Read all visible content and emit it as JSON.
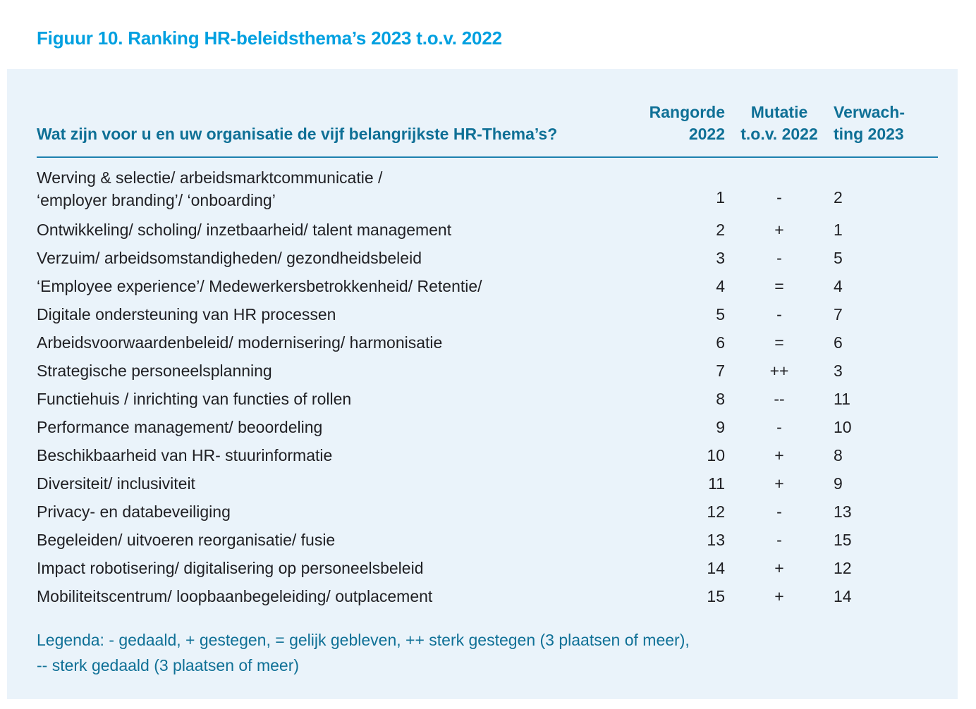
{
  "colors": {
    "figure_title_blue": "#00a0e0",
    "heading_teal": "#0f7096",
    "rule_blue": "#1c80ae",
    "panel_background": "#eaf3fa",
    "body_text": "#1f1f23"
  },
  "figure": {
    "title": "Figuur 10. Ranking HR-beleidsthema’s 2023 t.o.v. 2022"
  },
  "table": {
    "question": "Wat zijn voor u en uw organisatie de vijf belangrijkste HR-Thema’s?",
    "col_headers": {
      "rangorde": "Rangorde\n2022",
      "mutatie": "Mutatie\nt.o.v. 2022",
      "verwachting": "Verwach-\nting 2023"
    },
    "rows": [
      {
        "theme": "Werving & selectie/ arbeidsmarktcommunicatie /\n‘employer branding’/ ‘onboarding’",
        "rang": "1",
        "mut": "-",
        "verw": "2"
      },
      {
        "theme": "Ontwikkeling/ scholing/ inzetbaarheid/ talent management",
        "rang": "2",
        "mut": "+",
        "verw": "1"
      },
      {
        "theme": "Verzuim/ arbeidsomstandigheden/ gezondheidsbeleid",
        "rang": "3",
        "mut": "-",
        "verw": "5"
      },
      {
        "theme": "‘Employee experience’/ Medewerkersbetrokkenheid/ Retentie/",
        "rang": "4",
        "mut": "=",
        "verw": "4"
      },
      {
        "theme": "Digitale ondersteuning van HR processen",
        "rang": "5",
        "mut": "-",
        "verw": "7"
      },
      {
        "theme": "Arbeidsvoorwaardenbeleid/ modernisering/ harmonisatie",
        "rang": "6",
        "mut": "=",
        "verw": "6"
      },
      {
        "theme": "Strategische personeelsplanning",
        "rang": "7",
        "mut": "++",
        "verw": "3"
      },
      {
        "theme": "Functiehuis / inrichting van functies of rollen",
        "rang": "8",
        "mut": "--",
        "verw": "11"
      },
      {
        "theme": "Performance management/ beoordeling",
        "rang": "9",
        "mut": "-",
        "verw": "10"
      },
      {
        "theme": "Beschikbaarheid van HR- stuurinformatie",
        "rang": "10",
        "mut": "+",
        "verw": "8"
      },
      {
        "theme": "Diversiteit/ inclusiviteit",
        "rang": "11",
        "mut": "+",
        "verw": "9"
      },
      {
        "theme": "Privacy- en databeveiliging",
        "rang": "12",
        "mut": "-",
        "verw": "13"
      },
      {
        "theme": "Begeleiden/ uitvoeren reorganisatie/ fusie",
        "rang": "13",
        "mut": "-",
        "verw": "15"
      },
      {
        "theme": "Impact robotisering/ digitalisering op personeelsbeleid",
        "rang": "14",
        "mut": "+",
        "verw": "12"
      },
      {
        "theme": "Mobiliteitscentrum/ loopbaanbegeleiding/ outplacement",
        "rang": "15",
        "mut": "+",
        "verw": "14"
      }
    ]
  },
  "legend": {
    "text": "Legenda: - gedaald, + gestegen, = gelijk gebleven, ++ sterk gestegen (3 plaatsen of meer),\n-- sterk gedaald (3 plaatsen of meer)"
  },
  "chart_data": {
    "type": "table",
    "title": "Figuur 10. Ranking HR-beleidsthema’s 2023 t.o.v. 2022",
    "columns": [
      "Wat zijn voor u en uw organisatie de vijf belangrijkste HR-Thema’s?",
      "Rangorde 2022",
      "Mutatie t.o.v. 2022",
      "Verwachting 2023"
    ],
    "rows": [
      [
        "Werving & selectie/ arbeidsmarktcommunicatie / ‘employer branding’/ ‘onboarding’",
        1,
        "-",
        2
      ],
      [
        "Ontwikkeling/ scholing/ inzetbaarheid/ talent management",
        2,
        "+",
        1
      ],
      [
        "Verzuim/ arbeidsomstandigheden/ gezondheidsbeleid",
        3,
        "-",
        5
      ],
      [
        "‘Employee experience’/ Medewerkersbetrokkenheid/ Retentie/",
        4,
        "=",
        4
      ],
      [
        "Digitale ondersteuning van HR processen",
        5,
        "-",
        7
      ],
      [
        "Arbeidsvoorwaardenbeleid/ modernisering/ harmonisatie",
        6,
        "=",
        6
      ],
      [
        "Strategische personeelsplanning",
        7,
        "++",
        3
      ],
      [
        "Functiehuis / inrichting van functies of rollen",
        8,
        "--",
        11
      ],
      [
        "Performance management/ beoordeling",
        9,
        "-",
        10
      ],
      [
        "Beschikbaarheid van HR- stuurinformatie",
        10,
        "+",
        8
      ],
      [
        "Diversiteit/ inclusiviteit",
        11,
        "+",
        9
      ],
      [
        "Privacy- en databeveiliging",
        12,
        "-",
        13
      ],
      [
        "Begeleiden/ uitvoeren reorganisatie/ fusie",
        13,
        "-",
        15
      ],
      [
        "Impact robotisering/ digitalisering op personeelsbeleid",
        14,
        "+",
        12
      ],
      [
        "Mobiliteitscentrum/ loopbaanbegeleiding/ outplacement",
        15,
        "+",
        14
      ]
    ],
    "legend_notes": "Legenda: - gedaald, + gestegen, = gelijk gebleven, ++ sterk gestegen (3 plaatsen of meer), -- sterk gedaald (3 plaatsen of meer)"
  }
}
